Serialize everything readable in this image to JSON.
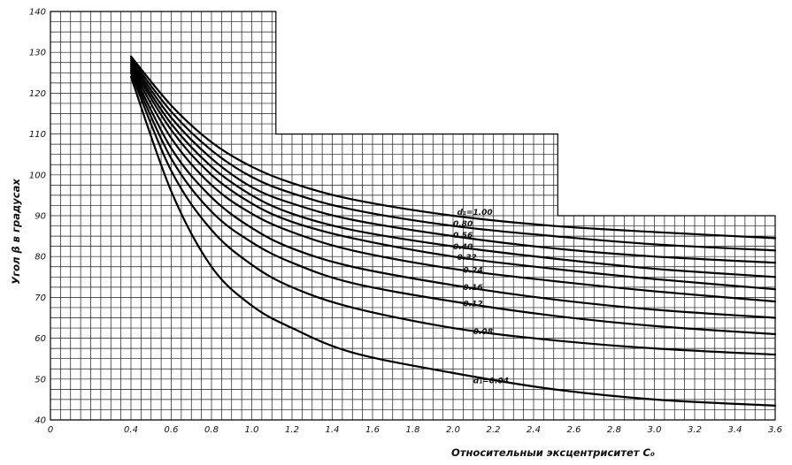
{
  "chart_data": {
    "type": "line",
    "title": "",
    "xlabel": "Относительныи эксцентриситет C₀",
    "ylabel": "Угол β в градусах",
    "xlim": [
      0,
      3.6
    ],
    "ylim": [
      40,
      140
    ],
    "grid": true,
    "x_ticks": [
      "0",
      "0.4",
      "0.6",
      "0.8",
      "1.0",
      "1.2",
      "1.4",
      "1.6",
      "1.8",
      "2.0",
      "2.2",
      "2.4",
      "2.6",
      "2.8",
      "3.0",
      "3.2",
      "3.4",
      "3.6"
    ],
    "y_ticks": [
      "40",
      "50",
      "60",
      "70",
      "80",
      "90",
      "100",
      "110",
      "120",
      "130",
      "140"
    ],
    "series": [
      {
        "name": "d₁=1.00",
        "x": [
          0.4,
          0.6,
          0.8,
          1.0,
          1.2,
          1.5,
          2.0,
          2.5,
          3.0,
          3.6
        ],
        "y": [
          129,
          117,
          108,
          102,
          98,
          94,
          90,
          87.5,
          86,
          84.5
        ]
      },
      {
        "name": "0.80",
        "x": [
          0.4,
          0.6,
          0.8,
          1.0,
          1.2,
          1.5,
          2.0,
          2.5,
          3.0,
          3.6
        ],
        "y": [
          128.5,
          115.5,
          106,
          99.5,
          95.5,
          91.5,
          87.5,
          85,
          83,
          81.5
        ]
      },
      {
        "name": "0.56",
        "x": [
          0.4,
          0.6,
          0.8,
          1.0,
          1.2,
          1.5,
          2.0,
          2.5,
          3.0,
          3.6
        ],
        "y": [
          128,
          114,
          104,
          97,
          93,
          89,
          85,
          82,
          80,
          78.5
        ]
      },
      {
        "name": "0.40",
        "x": [
          0.4,
          0.6,
          0.8,
          1.0,
          1.2,
          1.5,
          2.0,
          2.5,
          3.0,
          3.6
        ],
        "y": [
          127.5,
          112.5,
          102,
          95,
          90.5,
          86.5,
          82.5,
          79.5,
          77,
          75
        ]
      },
      {
        "name": "0.32",
        "x": [
          0.4,
          0.6,
          0.8,
          1.0,
          1.2,
          1.5,
          2.0,
          2.5,
          3.0,
          3.6
        ],
        "y": [
          127,
          111,
          100,
          93,
          88.5,
          84.5,
          80,
          77,
          74.5,
          72
        ]
      },
      {
        "name": "0.24",
        "x": [
          0.4,
          0.6,
          0.8,
          1.0,
          1.2,
          1.5,
          2.0,
          2.5,
          3.0,
          3.6
        ],
        "y": [
          126.5,
          109,
          97.5,
          90.5,
          86,
          81.5,
          77,
          74,
          71.5,
          69
        ]
      },
      {
        "name": "0.16",
        "x": [
          0.4,
          0.6,
          0.8,
          1.0,
          1.2,
          1.5,
          2.0,
          2.5,
          3.0,
          3.6
        ],
        "y": [
          126,
          106.5,
          94.5,
          87,
          82,
          77.5,
          73,
          69.5,
          67,
          65
        ]
      },
      {
        "name": "0.12",
        "x": [
          0.4,
          0.6,
          0.8,
          1.0,
          1.2,
          1.5,
          2.0,
          2.5,
          3.0,
          3.6
        ],
        "y": [
          125.5,
          104,
          91,
          83.5,
          78.5,
          73.5,
          69,
          65.5,
          63,
          61
        ]
      },
      {
        "name": "0.08",
        "x": [
          0.4,
          0.6,
          0.8,
          1.0,
          1.2,
          1.5,
          2.0,
          2.5,
          3.0,
          3.6
        ],
        "y": [
          125,
          101,
          86.5,
          78,
          72.5,
          67.5,
          62.5,
          59.5,
          57.5,
          56
        ]
      },
      {
        "name": "d₁=0.04",
        "x": [
          0.4,
          0.6,
          0.8,
          1.0,
          1.2,
          1.5,
          2.0,
          2.5,
          3.0,
          3.6
        ],
        "y": [
          124,
          96,
          77.5,
          68,
          62.5,
          56.5,
          51.5,
          47.5,
          45,
          43.5
        ]
      }
    ],
    "label_positions": [
      {
        "text": "d₁=1.00",
        "x": 2.02,
        "y": 90.2
      },
      {
        "text": "0.80",
        "x": 2.0,
        "y": 87.4
      },
      {
        "text": "0.56",
        "x": 2.0,
        "y": 84.6
      },
      {
        "text": "0.40",
        "x": 2.0,
        "y": 81.8
      },
      {
        "text": "0.32",
        "x": 2.02,
        "y": 79.2
      },
      {
        "text": "0.24",
        "x": 2.05,
        "y": 76.0
      },
      {
        "text": "0.16",
        "x": 2.05,
        "y": 71.8
      },
      {
        "text": "0.12",
        "x": 2.05,
        "y": 67.8
      },
      {
        "text": "0.08",
        "x": 2.1,
        "y": 61.0
      },
      {
        "text": "d₁=0.04",
        "x": 2.1,
        "y": 49.0
      }
    ]
  }
}
